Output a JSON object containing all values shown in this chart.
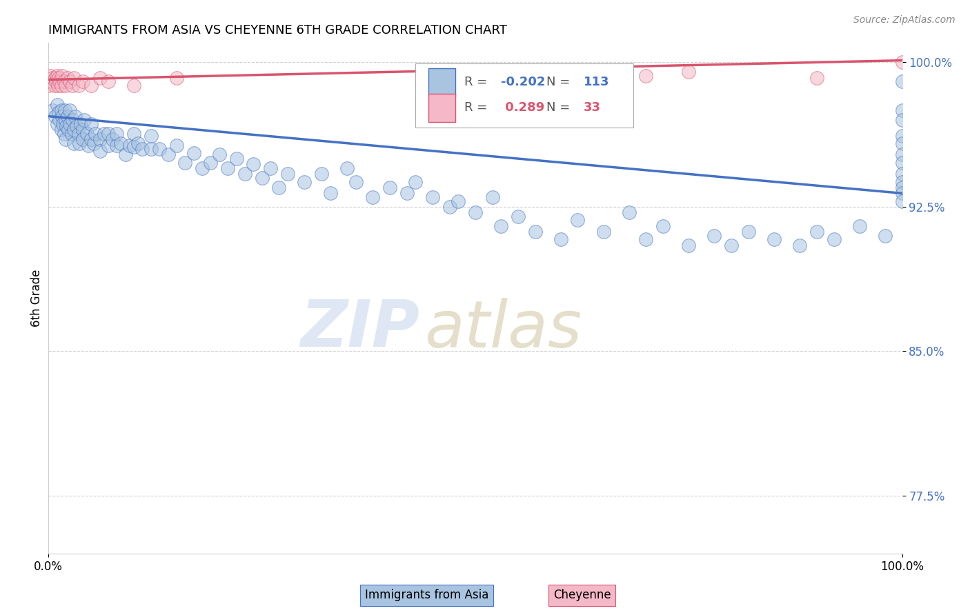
{
  "title": "IMMIGRANTS FROM ASIA VS CHEYENNE 6TH GRADE CORRELATION CHART",
  "source_text": "Source: ZipAtlas.com",
  "ylabel": "6th Grade",
  "legend_label1": "Immigrants from Asia",
  "legend_label2": "Cheyenne",
  "R1": -0.202,
  "N1": 113,
  "R2": 0.289,
  "N2": 33,
  "color1": "#a8c4e0",
  "color2": "#f4b8c8",
  "line_color1": "#4472c4",
  "line_color2": "#d9546e",
  "xlim": [
    0.0,
    1.0
  ],
  "ylim": [
    0.745,
    1.01
  ],
  "yticks": [
    0.775,
    0.85,
    0.925,
    1.0
  ],
  "ytick_labels": [
    "77.5%",
    "85.0%",
    "92.5%",
    "100.0%"
  ],
  "xtick_labels": [
    "0.0%",
    "100.0%"
  ],
  "xticks": [
    0.0,
    1.0
  ],
  "background_color": "#ffffff",
  "blue_trend_start": 0.972,
  "blue_trend_end": 0.932,
  "pink_trend_start": 0.991,
  "pink_trend_end": 1.001,
  "blue_x": [
    0.005,
    0.008,
    0.01,
    0.01,
    0.012,
    0.013,
    0.015,
    0.015,
    0.016,
    0.017,
    0.018,
    0.019,
    0.02,
    0.02,
    0.021,
    0.022,
    0.023,
    0.025,
    0.025,
    0.027,
    0.028,
    0.03,
    0.03,
    0.031,
    0.033,
    0.035,
    0.036,
    0.038,
    0.04,
    0.04,
    0.042,
    0.045,
    0.047,
    0.05,
    0.05,
    0.053,
    0.055,
    0.06,
    0.06,
    0.065,
    0.07,
    0.07,
    0.075,
    0.08,
    0.08,
    0.085,
    0.09,
    0.095,
    0.1,
    0.1,
    0.105,
    0.11,
    0.12,
    0.12,
    0.13,
    0.14,
    0.15,
    0.16,
    0.17,
    0.18,
    0.19,
    0.2,
    0.21,
    0.22,
    0.23,
    0.24,
    0.25,
    0.26,
    0.27,
    0.28,
    0.3,
    0.32,
    0.33,
    0.35,
    0.36,
    0.38,
    0.4,
    0.42,
    0.43,
    0.45,
    0.47,
    0.48,
    0.5,
    0.52,
    0.53,
    0.55,
    0.57,
    0.6,
    0.62,
    0.65,
    0.68,
    0.7,
    0.72,
    0.75,
    0.78,
    0.8,
    0.82,
    0.85,
    0.88,
    0.9,
    0.92,
    0.95,
    0.98,
    1.0,
    1.0,
    1.0,
    1.0,
    1.0,
    1.0,
    1.0,
    1.0,
    1.0,
    1.0,
    1.0,
    1.0
  ],
  "blue_y": [
    0.975,
    0.972,
    0.978,
    0.968,
    0.974,
    0.97,
    0.975,
    0.965,
    0.972,
    0.968,
    0.963,
    0.975,
    0.97,
    0.96,
    0.967,
    0.972,
    0.965,
    0.975,
    0.968,
    0.963,
    0.97,
    0.965,
    0.958,
    0.972,
    0.967,
    0.963,
    0.958,
    0.968,
    0.965,
    0.96,
    0.97,
    0.963,
    0.957,
    0.968,
    0.96,
    0.958,
    0.963,
    0.96,
    0.954,
    0.963,
    0.957,
    0.963,
    0.96,
    0.957,
    0.963,
    0.958,
    0.952,
    0.957,
    0.956,
    0.963,
    0.958,
    0.955,
    0.955,
    0.962,
    0.955,
    0.952,
    0.957,
    0.948,
    0.953,
    0.945,
    0.948,
    0.952,
    0.945,
    0.95,
    0.942,
    0.947,
    0.94,
    0.945,
    0.935,
    0.942,
    0.938,
    0.942,
    0.932,
    0.945,
    0.938,
    0.93,
    0.935,
    0.932,
    0.938,
    0.93,
    0.925,
    0.928,
    0.922,
    0.93,
    0.915,
    0.92,
    0.912,
    0.908,
    0.918,
    0.912,
    0.922,
    0.908,
    0.915,
    0.905,
    0.91,
    0.905,
    0.912,
    0.908,
    0.905,
    0.912,
    0.908,
    0.915,
    0.91,
    0.99,
    0.975,
    0.97,
    0.962,
    0.958,
    0.952,
    0.948,
    0.942,
    0.938,
    0.935,
    0.932,
    0.928
  ],
  "pink_x": [
    0.0,
    0.002,
    0.004,
    0.005,
    0.007,
    0.008,
    0.009,
    0.01,
    0.011,
    0.012,
    0.013,
    0.015,
    0.016,
    0.018,
    0.02,
    0.022,
    0.025,
    0.028,
    0.03,
    0.035,
    0.04,
    0.05,
    0.06,
    0.07,
    0.1,
    0.15,
    0.55,
    0.6,
    0.65,
    0.7,
    0.75,
    0.9,
    1.0
  ],
  "pink_y": [
    0.988,
    0.993,
    0.99,
    0.992,
    0.988,
    0.992,
    0.99,
    0.993,
    0.988,
    0.992,
    0.99,
    0.988,
    0.993,
    0.99,
    0.988,
    0.992,
    0.99,
    0.988,
    0.992,
    0.988,
    0.99,
    0.988,
    0.992,
    0.99,
    0.988,
    0.992,
    0.993,
    0.995,
    0.99,
    0.993,
    0.995,
    0.992,
    1.0
  ],
  "scatter_size": 200,
  "scatter_alpha": 0.55,
  "scatter_lw": 0.8
}
